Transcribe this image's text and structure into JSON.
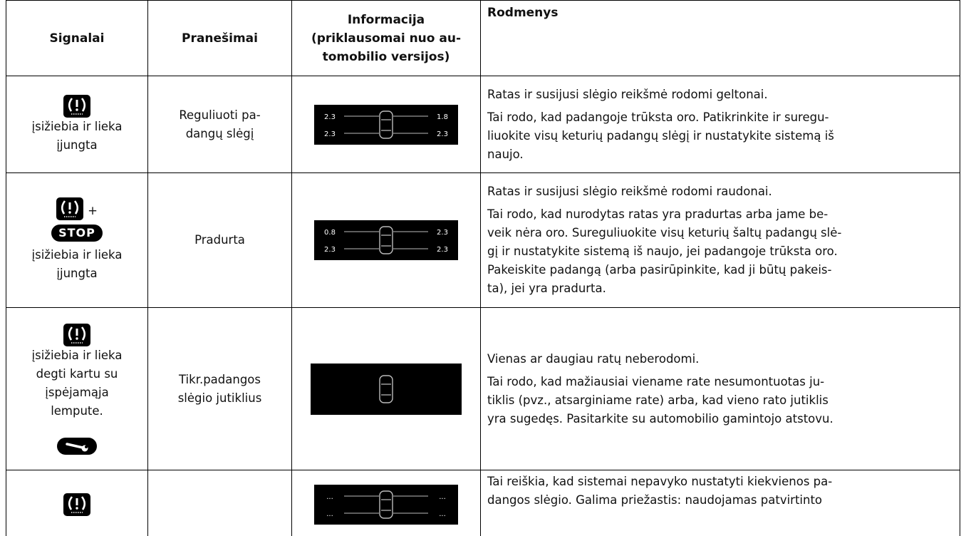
{
  "table": {
    "headers": [
      [
        "Signalai"
      ],
      [
        "Pranešimai"
      ],
      [
        "Informacija",
        "(priklausomai nuo au-",
        "tomobilio versijos)"
      ],
      [
        "Rodmenys"
      ]
    ],
    "rows": [
      {
        "signal_lines": [
          "įsižiebia ir lieka",
          "įjungta"
        ],
        "message_lines": [
          "Reguliuoti pa-",
          "dangų slėgį"
        ],
        "display": [
          "2.3",
          "1.8",
          "2.3",
          "2.3"
        ],
        "paragraphs": [
          [
            "Ratas ir susijusi slėgio reikšmė rodomi geltonai."
          ],
          [
            "Tai rodo, kad padangoje trūksta oro. Patikrinkite ir suregu-",
            "liuokite visų keturių padangų slėgį ir nustatykite sistemą iš",
            "naujo."
          ]
        ]
      },
      {
        "plus": "+",
        "stop": "STOP",
        "signal_lines": [
          "įsižiebia ir lieka",
          "įjungta"
        ],
        "message_lines": [
          "Pradurta"
        ],
        "display": [
          "0.8",
          "2.3",
          "2.3",
          "2.3"
        ],
        "paragraphs": [
          [
            "Ratas ir susijusi slėgio reikšmė rodomi raudonai."
          ],
          [
            "Tai rodo, kad nurodytas ratas yra pradurtas arba jame be-",
            "veik nėra oro. Sureguliuokite visų keturių šaltų padangų slė-",
            "gį ir nustatykite sistemą iš naujo, jei padangoje trūksta oro.",
            "Pakeiskite padangą (arba pasirūpinkite, kad ji būtų pakeis-",
            "ta), jei yra pradurta."
          ]
        ]
      },
      {
        "signal_lines": [
          "įsižiebia ir lieka",
          "degti kartu su",
          "įspėjamąja",
          "lempute."
        ],
        "message_lines": [
          "Tikr.padangos",
          "slėgio jutiklius"
        ],
        "paragraphs": [
          [
            "Vienas ar daugiau ratų neberodomi."
          ],
          [
            "Tai rodo, kad mažiausiai viename rate nesumontuotas ju-",
            "tiklis (pvz., atsarginiame rate) arba, kad vieno rato jutiklis",
            "yra sugedęs. Pasitarkite su automobilio gamintojo atstovu."
          ]
        ]
      },
      {
        "display": [
          "...",
          "...",
          "...",
          "..."
        ],
        "paragraphs": [
          [
            "Tai reiškia, kad sistemai nepavyko nustatyti kiekvienos pa-",
            "dangos slėgio. Galima priežastis: naudojamas patvirtinto"
          ]
        ]
      }
    ]
  }
}
